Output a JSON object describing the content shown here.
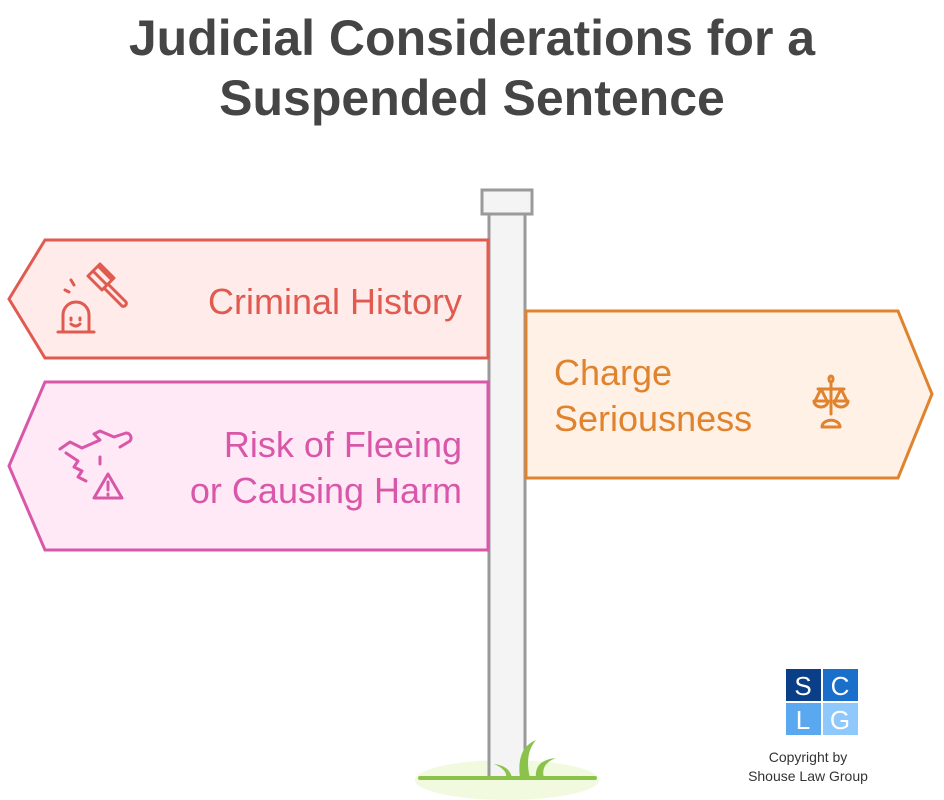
{
  "title": {
    "line1": "Judicial Considerations for a",
    "line2": "Suspended Sentence"
  },
  "signs": [
    {
      "label_lines": [
        "Criminal History"
      ],
      "icon": "gavel-siren-icon",
      "stroke": "#e05a50",
      "fill": "#ffecea",
      "direction": "left"
    },
    {
      "label_lines": [
        "Charge",
        "Seriousness"
      ],
      "icon": "scales-of-justice-icon",
      "stroke": "#e0832f",
      "fill": "#fff1e5",
      "direction": "right"
    },
    {
      "label_lines": [
        "Risk of Fleeing",
        "or Causing Harm"
      ],
      "icon": "plane-warning-icon",
      "stroke": "#d957a8",
      "fill": "#ffe9f6",
      "direction": "left"
    }
  ],
  "logo": {
    "letters": [
      "S",
      "C",
      "L",
      "G"
    ],
    "colors": [
      "#0a3f87",
      "#1a6fcb",
      "#5aa8ef",
      "#8fc8fb"
    ]
  },
  "copyright": {
    "line1": "Copyright by",
    "line2": "Shouse Law Group"
  }
}
